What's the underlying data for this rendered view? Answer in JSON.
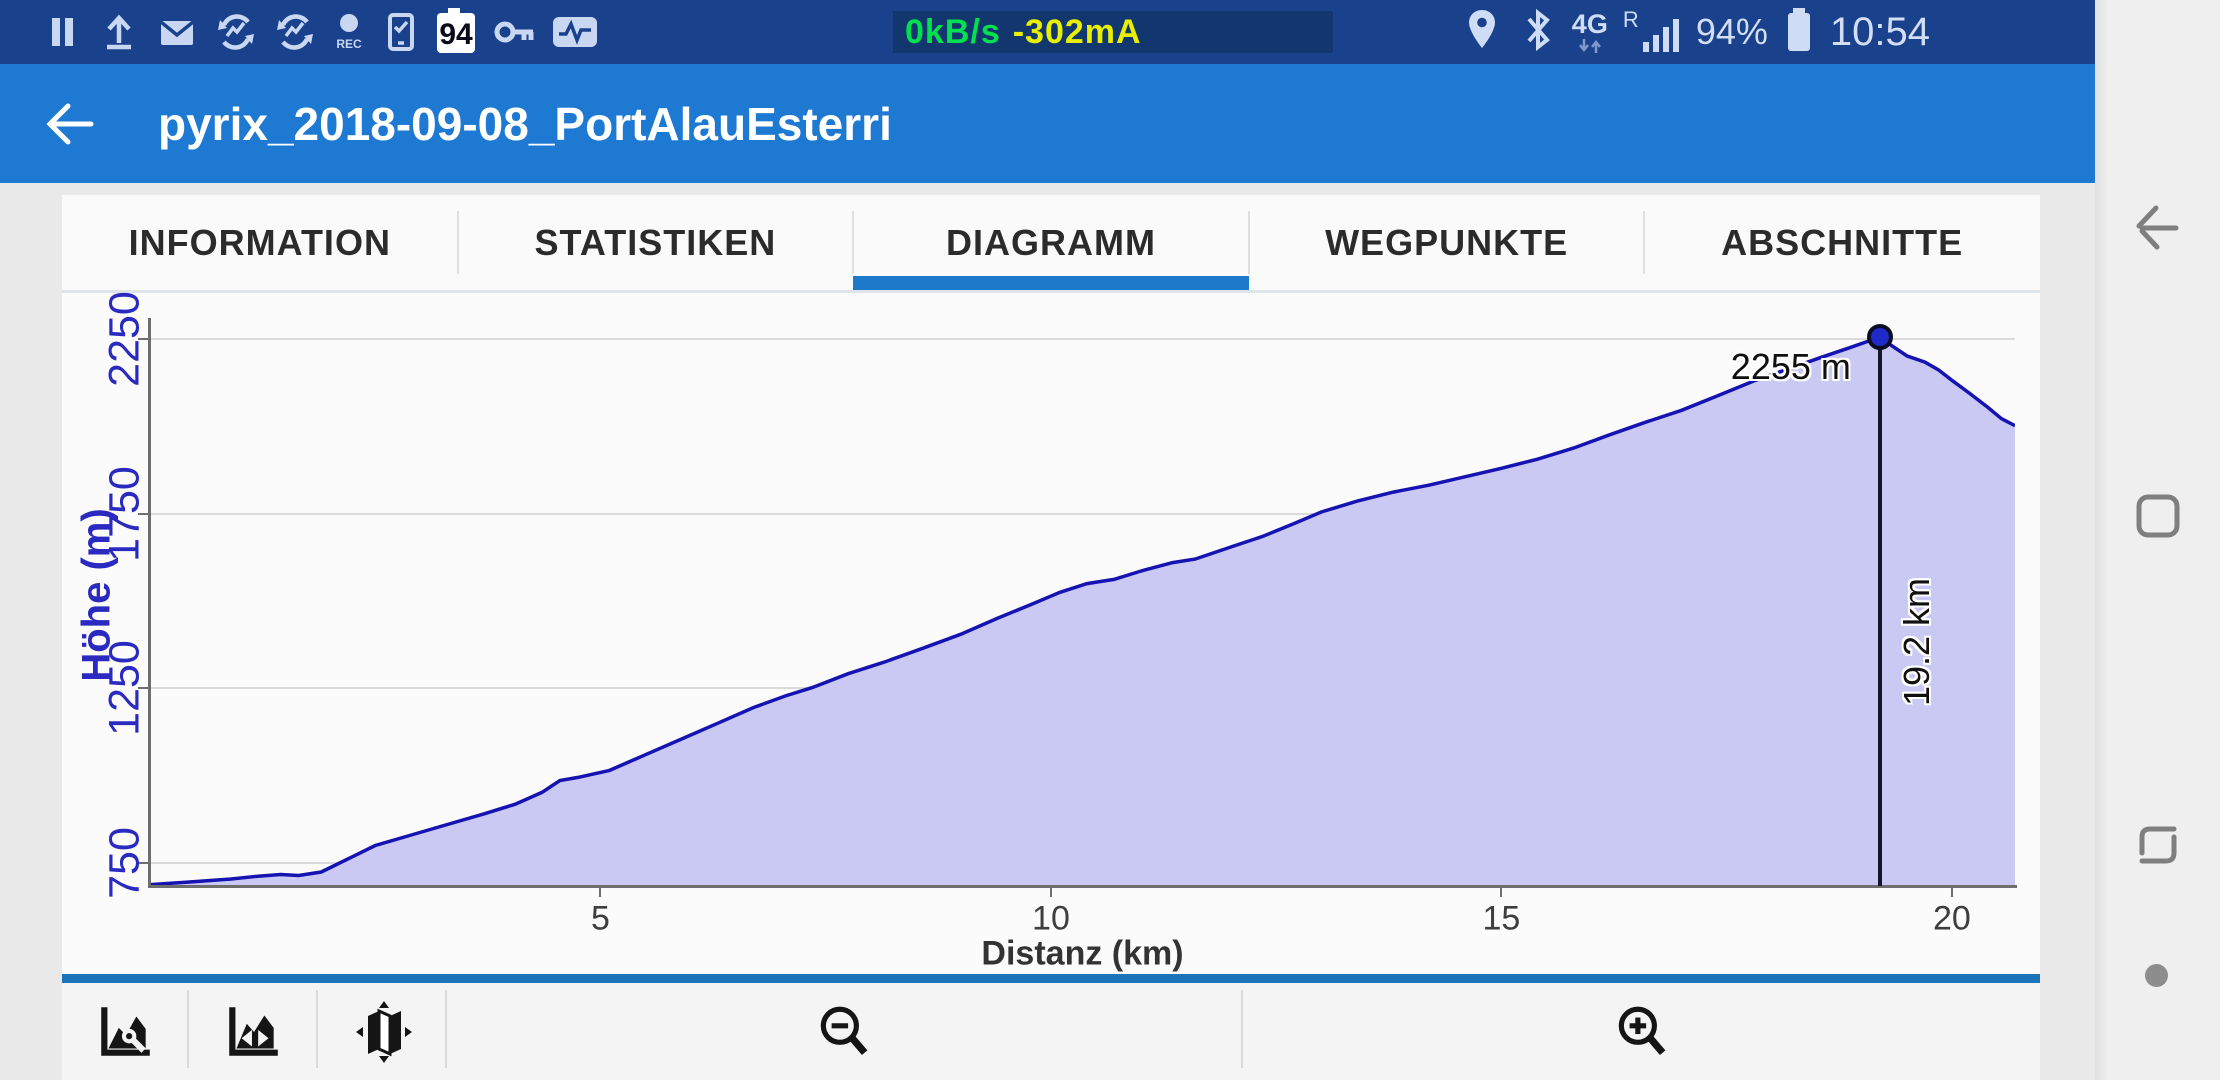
{
  "status_bar": {
    "left_icons": [
      "pause-icon",
      "upload-icon",
      "mail-icon",
      "sync-chart-icon",
      "sync-chart-icon-2",
      "rec-icon",
      "device-check-icon",
      "gps-accuracy-badge",
      "key-icon",
      "activity-icon"
    ],
    "gps_accuracy_badge": "94",
    "readout": {
      "net_speed": "0kB/s",
      "current": "-302mA"
    },
    "right": {
      "network_type": "4G",
      "roaming": "R",
      "battery_percent": "94%",
      "time": "10:54"
    },
    "right_icons": [
      "location-icon",
      "bluetooth-icon",
      "signal-bars-icon",
      "battery-icon"
    ]
  },
  "header": {
    "title": "pyrix_2018-09-08_PortAlauEsterri",
    "back": "back-arrow-icon"
  },
  "tabs": {
    "items": [
      {
        "label": "INFORMATION",
        "active": false
      },
      {
        "label": "STATISTIKEN",
        "active": false
      },
      {
        "label": "DIAGRAMM",
        "active": true
      },
      {
        "label": "WEGPUNKTE",
        "active": false
      },
      {
        "label": "ABSCHNITTE",
        "active": false
      }
    ]
  },
  "chart_data": {
    "type": "area",
    "title": "",
    "xlabel": "Distanz (km)",
    "ylabel": "Höhe (m)",
    "xticks": [
      5,
      10,
      15,
      20
    ],
    "yticks": [
      750,
      1250,
      1750,
      2250
    ],
    "xlim": [
      0,
      20.7
    ],
    "ylim": [
      684,
      2319
    ],
    "grid": "horizontal",
    "legend": "none",
    "series": [
      {
        "name": "Höhe",
        "points": [
          [
            0,
            688
          ],
          [
            0.4,
            695
          ],
          [
            0.9,
            704
          ],
          [
            1.2,
            712
          ],
          [
            1.45,
            717
          ],
          [
            1.65,
            714
          ],
          [
            1.9,
            724
          ],
          [
            2.2,
            762
          ],
          [
            2.5,
            800
          ],
          [
            2.9,
            830
          ],
          [
            3.3,
            860
          ],
          [
            3.7,
            890
          ],
          [
            4.05,
            918
          ],
          [
            4.35,
            952
          ],
          [
            4.55,
            986
          ],
          [
            4.75,
            995
          ],
          [
            5.1,
            1015
          ],
          [
            5.5,
            1060
          ],
          [
            5.9,
            1105
          ],
          [
            6.3,
            1150
          ],
          [
            6.7,
            1195
          ],
          [
            7.05,
            1228
          ],
          [
            7.35,
            1252
          ],
          [
            7.75,
            1292
          ],
          [
            8.15,
            1325
          ],
          [
            8.55,
            1362
          ],
          [
            9,
            1405
          ],
          [
            9.4,
            1450
          ],
          [
            9.8,
            1492
          ],
          [
            10.1,
            1525
          ],
          [
            10.4,
            1550
          ],
          [
            10.7,
            1562
          ],
          [
            11,
            1586
          ],
          [
            11.35,
            1610
          ],
          [
            11.6,
            1620
          ],
          [
            12,
            1655
          ],
          [
            12.35,
            1685
          ],
          [
            12.7,
            1722
          ],
          [
            13,
            1755
          ],
          [
            13.4,
            1786
          ],
          [
            13.8,
            1812
          ],
          [
            14.2,
            1832
          ],
          [
            14.6,
            1856
          ],
          [
            15,
            1880
          ],
          [
            15.4,
            1906
          ],
          [
            15.8,
            1938
          ],
          [
            16.2,
            1976
          ],
          [
            16.6,
            2012
          ],
          [
            17,
            2046
          ],
          [
            17.4,
            2088
          ],
          [
            17.8,
            2130
          ],
          [
            18.2,
            2166
          ],
          [
            18.55,
            2198
          ],
          [
            18.85,
            2224
          ],
          [
            19.05,
            2242
          ],
          [
            19.2,
            2255
          ],
          [
            19.35,
            2228
          ],
          [
            19.5,
            2202
          ],
          [
            19.7,
            2184
          ],
          [
            19.85,
            2162
          ],
          [
            20,
            2132
          ],
          [
            20.2,
            2094
          ],
          [
            20.4,
            2054
          ],
          [
            20.55,
            2022
          ],
          [
            20.7,
            2002
          ]
        ]
      }
    ],
    "marker": {
      "x_km": 19.2,
      "y_m": 2255,
      "elev_label": "2255 m",
      "dist_label": "19.2 km"
    }
  },
  "toolbar": {
    "buttons": [
      "chart-settings-button",
      "chart-pan-button",
      "show-on-map-button",
      "zoom-out-button",
      "zoom-in-button"
    ]
  },
  "nav_bar": {
    "items": [
      "nav-back",
      "nav-home",
      "nav-recents",
      "nav-handle-dot"
    ]
  },
  "colors": {
    "status_bar_bg": "#1a428c",
    "app_bar_bg": "#1e79d2",
    "accent_blue": "#1d79ca",
    "chart_line": "#1513b2",
    "chart_fill": "#c9c9f3",
    "net_speed_green": "#00e050",
    "current_yellow": "#e8ef00",
    "marker": "#1f2ac8"
  }
}
